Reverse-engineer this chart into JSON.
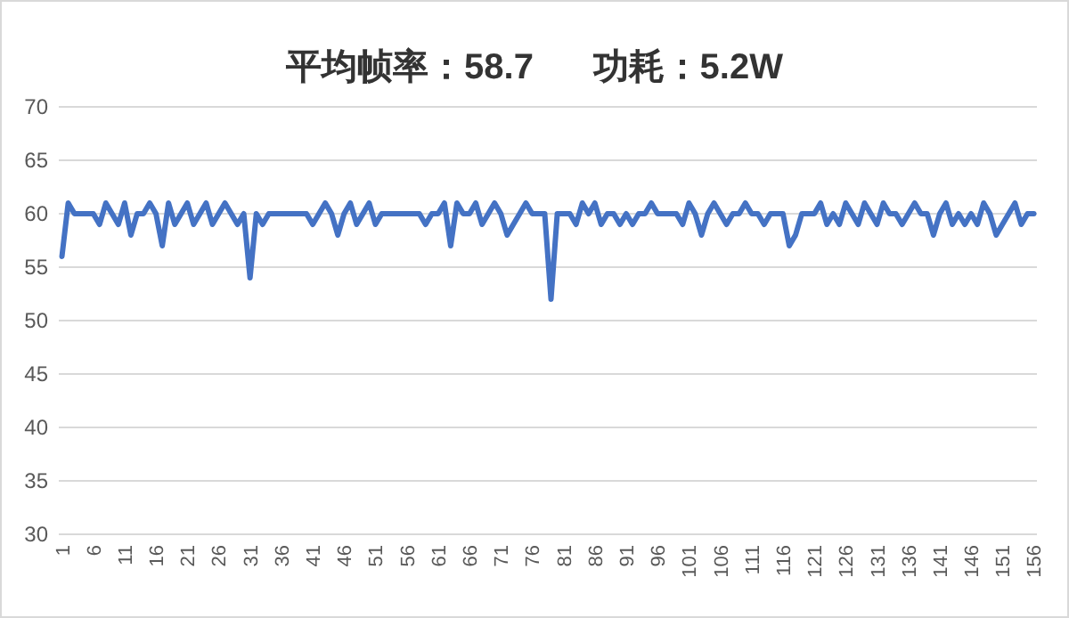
{
  "chart_data": {
    "type": "line",
    "title": "平均帧率：58.7      功耗：5.2W",
    "categories": [
      "1",
      null,
      null,
      null,
      null,
      "6",
      null,
      null,
      null,
      null,
      "11",
      null,
      null,
      null,
      null,
      "16",
      null,
      null,
      null,
      null,
      "21",
      null,
      null,
      null,
      null,
      "26",
      null,
      null,
      null,
      null,
      "31",
      null,
      null,
      null,
      null,
      "36",
      null,
      null,
      null,
      null,
      "41",
      null,
      null,
      null,
      null,
      "46",
      null,
      null,
      null,
      null,
      "51",
      null,
      null,
      null,
      null,
      "56",
      null,
      null,
      null,
      null,
      "61",
      null,
      null,
      null,
      null,
      "66",
      null,
      null,
      null,
      null,
      "71",
      null,
      null,
      null,
      null,
      "76",
      null,
      null,
      null,
      null,
      "81",
      null,
      null,
      null,
      null,
      "86",
      null,
      null,
      null,
      null,
      "91",
      null,
      null,
      null,
      null,
      "96",
      null,
      null,
      null,
      null,
      "101",
      null,
      null,
      null,
      null,
      "106",
      null,
      null,
      null,
      null,
      "111",
      null,
      null,
      null,
      null,
      "116",
      null,
      null,
      null,
      null,
      "121",
      null,
      null,
      null,
      null,
      "126",
      null,
      null,
      null,
      null,
      "131",
      null,
      null,
      null,
      null,
      "136",
      null,
      null,
      null,
      null,
      "141",
      null,
      null,
      null,
      null,
      "146",
      null,
      null,
      null,
      null,
      "151",
      null,
      null,
      null,
      null,
      "156"
    ],
    "values": [
      56,
      61,
      60,
      60,
      60,
      60,
      59,
      61,
      60,
      59,
      61,
      58,
      60,
      60,
      61,
      60,
      57,
      61,
      59,
      60,
      61,
      59,
      60,
      61,
      59,
      60,
      61,
      60,
      59,
      60,
      54,
      60,
      59,
      60,
      60,
      60,
      60,
      60,
      60,
      60,
      59,
      60,
      61,
      60,
      58,
      60,
      61,
      59,
      60,
      61,
      59,
      60,
      60,
      60,
      60,
      60,
      60,
      60,
      59,
      60,
      60,
      61,
      57,
      61,
      60,
      60,
      61,
      59,
      60,
      61,
      60,
      58,
      59,
      60,
      61,
      60,
      60,
      60,
      52,
      60,
      60,
      60,
      59,
      61,
      60,
      61,
      59,
      60,
      60,
      59,
      60,
      59,
      60,
      60,
      61,
      60,
      60,
      60,
      60,
      59,
      61,
      60,
      58,
      60,
      61,
      60,
      59,
      60,
      60,
      61,
      60,
      60,
      59,
      60,
      60,
      60,
      57,
      58,
      60,
      60,
      60,
      61,
      59,
      60,
      59,
      61,
      60,
      59,
      61,
      60,
      59,
      61,
      60,
      60,
      59,
      60,
      61,
      60,
      60,
      58,
      60,
      61,
      59,
      60,
      59,
      60,
      59,
      61,
      60,
      58,
      59,
      60,
      61,
      59,
      60,
      60
    ],
    "color": "#4472c4",
    "ylim": [
      30,
      70
    ],
    "yticks": [
      30,
      35,
      40,
      45,
      50,
      55,
      60,
      65,
      70
    ],
    "grid": "y"
  }
}
